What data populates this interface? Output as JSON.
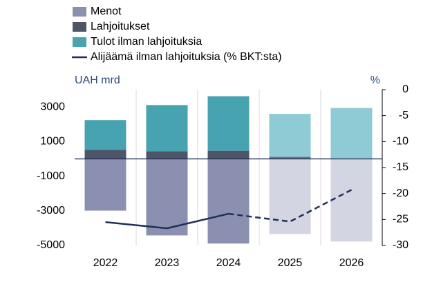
{
  "chart_data": {
    "type": "bar",
    "y_label": "UAH mrd",
    "y2_label": "%",
    "categories": [
      "2022",
      "2023",
      "2024",
      "2025",
      "2026"
    ],
    "ylim": [
      -5000,
      4000
    ],
    "yticks": [
      3000,
      1000,
      -1000,
      -3000,
      -5000
    ],
    "y2lim": [
      -30,
      0
    ],
    "y2ticks": [
      0,
      -5,
      -10,
      -15,
      -20,
      -25,
      -30
    ],
    "series": [
      {
        "name": "Menot",
        "color": "#8b90b0",
        "colors": [
          "#8b90b0",
          "#8b90b0",
          "#8b90b0",
          "#d3d5e3",
          "#d3d5e3"
        ],
        "values": [
          -2990,
          -4420,
          -4890,
          -4340,
          -4770
        ]
      },
      {
        "name": "Lahjoitukset",
        "color": "#4d5566",
        "colors": [
          "#4d5566",
          "#4d5566",
          "#4d5566",
          "#6b7384",
          "#a9aebb"
        ],
        "values": [
          520,
          440,
          470,
          120,
          30
        ]
      },
      {
        "name": "Tulot ilman lahjoituksia",
        "color": "#48a3b1",
        "colors": [
          "#48a3b1",
          "#48a3b1",
          "#48a3b1",
          "#8ecbd5",
          "#8ecbd5"
        ],
        "values": [
          1720,
          2670,
          3150,
          2480,
          2910
        ]
      },
      {
        "name": "Alijäämä ilman lahjoituksia (% BKT:sta)",
        "type": "line",
        "axis": "y2",
        "color": "#1f2f55",
        "dash_from": 2,
        "values": [
          -25.5,
          -26.7,
          -23.9,
          -25.4,
          -19.3
        ]
      }
    ]
  }
}
